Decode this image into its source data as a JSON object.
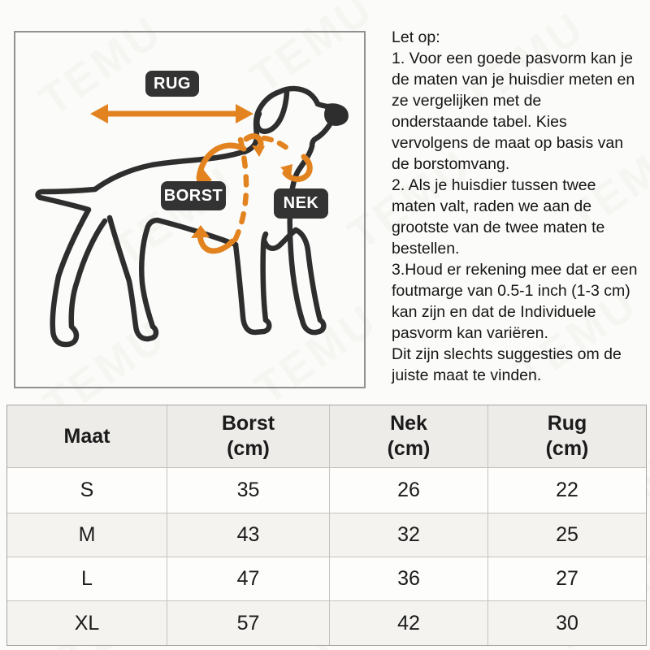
{
  "page": {
    "background": "#fbfbf9",
    "watermark_text": "TEMU"
  },
  "diagram": {
    "labels": {
      "rug": "RUG",
      "borst": "BORST",
      "nek": "NEK"
    },
    "colors": {
      "accent_orange": "#E2831F",
      "label_background": "#333333",
      "label_text": "#FFFFFF",
      "dog_outline": "#2E2E2E",
      "box_border": "#919191"
    }
  },
  "instructions": {
    "text": "Let op:\n1. Voor een goede pasvorm kan je\nde maten van je huisdier meten en\nze vergelijken met de\nonderstaande tabel. Kies\nvervolgens de maat op basis van\nde borstomvang.\n2. Als je huisdier tussen twee\nmaten valt, raden we aan de\ngrootste van de twee maten te\nbestellen.\n3.Houd er rekening mee dat er een\nfoutmarge van 0.5-1 inch (1-3 cm)\nkan zijn en dat de Individuele\npasvorm kan variëren.\nDit zijn slechts suggesties om de\njuiste maat te vinden."
  },
  "size_table": {
    "type": "table",
    "columns": [
      {
        "label": "Maat",
        "unit": ""
      },
      {
        "label": "Borst",
        "unit": "(cm)"
      },
      {
        "label": "Nek",
        "unit": "(cm)"
      },
      {
        "label": "Rug",
        "unit": "(cm)"
      }
    ],
    "rows": [
      [
        "S",
        "35",
        "26",
        "22"
      ],
      [
        "M",
        "43",
        "32",
        "25"
      ],
      [
        "L",
        "47",
        "36",
        "27"
      ],
      [
        "XL",
        "57",
        "42",
        "30"
      ]
    ]
  }
}
